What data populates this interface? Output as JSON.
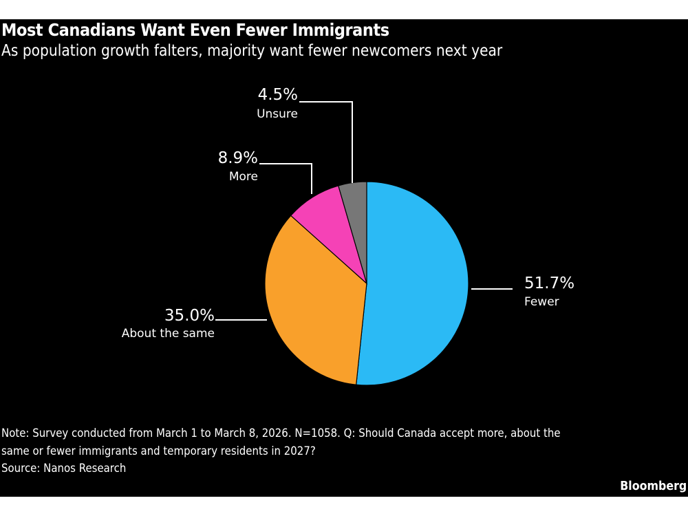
{
  "title": "Most Canadians Want Even Fewer Immigrants",
  "subtitle": "As population growth falters, majority want fewer newcomers next year",
  "note_line1": "Note: Survey conducted from March 1 to March 8, 2026. N=1058. Q: Should Canada accept more, about the",
  "note_line2": "same or fewer immigrants and temporary residents in 2027?",
  "source": "Source: Nanos Research",
  "brand": "Bloomberg",
  "chart_data": {
    "type": "pie",
    "title": "Most Canadians Want Even Fewer Immigrants",
    "subtitle": "As population growth falters, majority want fewer newcomers next year",
    "start": "12 o'clock, clockwise",
    "slices": [
      {
        "label": "Fewer",
        "value": 51.7,
        "value_label": "51.7%",
        "color": "#2bbaf5"
      },
      {
        "label": "About the same",
        "value": 35.0,
        "value_label": "35.0%",
        "color": "#f9a02b"
      },
      {
        "label": "More",
        "value": 8.9,
        "value_label": "8.9%",
        "color": "#f542b6"
      },
      {
        "label": "Unsure",
        "value": 4.5,
        "value_label": "4.5%",
        "color": "#777777"
      }
    ]
  }
}
